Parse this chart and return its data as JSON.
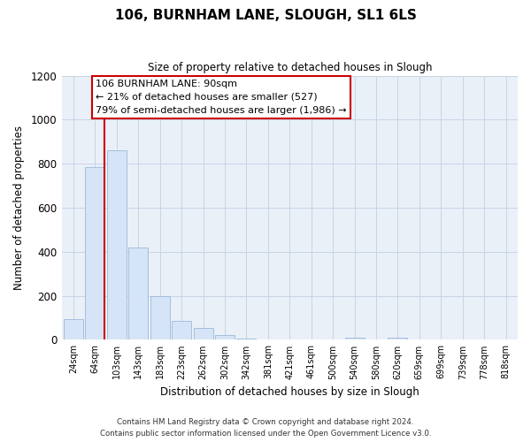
{
  "title": "106, BURNHAM LANE, SLOUGH, SL1 6LS",
  "subtitle": "Size of property relative to detached houses in Slough",
  "xlabel": "Distribution of detached houses by size in Slough",
  "ylabel": "Number of detached properties",
  "bar_labels": [
    "24sqm",
    "64sqm",
    "103sqm",
    "143sqm",
    "183sqm",
    "223sqm",
    "262sqm",
    "302sqm",
    "342sqm",
    "381sqm",
    "421sqm",
    "461sqm",
    "500sqm",
    "540sqm",
    "580sqm",
    "620sqm",
    "659sqm",
    "699sqm",
    "739sqm",
    "778sqm",
    "818sqm"
  ],
  "bar_values": [
    95,
    785,
    860,
    420,
    200,
    85,
    52,
    22,
    5,
    2,
    0,
    0,
    0,
    10,
    0,
    10,
    0,
    0,
    0,
    0,
    0
  ],
  "bar_color": "#d6e4f7",
  "bar_edge_color": "#9ab8d8",
  "annotation_line1": "106 BURNHAM LANE: 90sqm",
  "annotation_line2": "← 21% of detached houses are smaller (527)",
  "annotation_line3": "79% of semi-detached houses are larger (1,986) →",
  "annotation_box_facecolor": "#ffffff",
  "annotation_box_edgecolor": "#cc0000",
  "red_line_color": "#cc0000",
  "ylim": [
    0,
    1200
  ],
  "yticks": [
    0,
    200,
    400,
    600,
    800,
    1000,
    1200
  ],
  "footer_line1": "Contains HM Land Registry data © Crown copyright and database right 2024.",
  "footer_line2": "Contains public sector information licensed under the Open Government Licence v3.0.",
  "background_color": "#ffffff",
  "plot_bg_color": "#eaf0f8",
  "grid_color": "#c8d4e4"
}
